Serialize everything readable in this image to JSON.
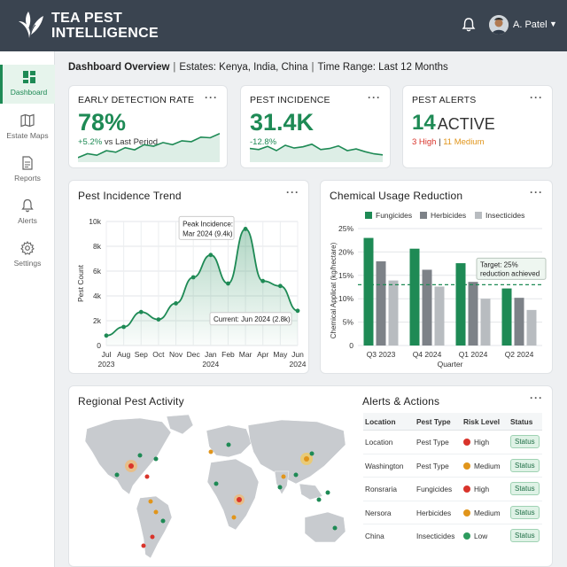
{
  "app": {
    "brand_line1": "TEA PEST",
    "brand_line2": "INTELLIGENCE",
    "user_name": "A. Patel",
    "accent": "#1e8a55",
    "topbar_color": "#3a4450"
  },
  "sidebar": {
    "items": [
      {
        "label": "Dashboard",
        "icon": "dashboard-icon",
        "active": true
      },
      {
        "label": "Estate Maps",
        "icon": "map-icon",
        "active": false
      },
      {
        "label": "Reports",
        "icon": "document-icon",
        "active": false
      },
      {
        "label": "Alerts",
        "icon": "bell-icon",
        "active": false
      },
      {
        "label": "Settings",
        "icon": "gear-icon",
        "active": false
      }
    ]
  },
  "header": {
    "title": "Dashboard Overview",
    "estates_label": "Estates:",
    "estates": "Kenya, India, China",
    "range_label": "Time Range:",
    "range": "Last 12 Months"
  },
  "kpis": {
    "detection": {
      "title": "EARLY DETECTION RATE",
      "value": "78%",
      "change": "+5.2%",
      "change_suffix": "vs Last Period",
      "sparkline": [
        0.12,
        0.25,
        0.2,
        0.35,
        0.3,
        0.45,
        0.38,
        0.55,
        0.5,
        0.62,
        0.55,
        0.68,
        0.65,
        0.8,
        0.78,
        0.92
      ]
    },
    "incidence": {
      "title": "PEST INCIDENCE",
      "value": "31.4K",
      "change": "-12.8%",
      "sparkline": [
        0.6,
        0.55,
        0.7,
        0.5,
        0.75,
        0.62,
        0.68,
        0.8,
        0.55,
        0.6,
        0.72,
        0.5,
        0.58,
        0.45,
        0.35,
        0.3
      ]
    },
    "alerts": {
      "title": "PEST ALERTS",
      "value": "14",
      "value_suffix": "ACTIVE",
      "high": "3 High",
      "medium": "11 Medium"
    }
  },
  "trend": {
    "title": "Pest Incidence Trend",
    "peak_label": "Peak Incidence:",
    "peak_value": "Mar 2024 (9.4k)",
    "current_label": "Current: Jun 2024 (2.8k)"
  },
  "usage": {
    "title": "Chemical Usage Reduction",
    "target_label": "Target: 25%",
    "target_label2": "reduction achieved"
  },
  "regional": {
    "title": "Regional Pest Activity"
  },
  "alerts_table": {
    "title": "Alerts & Actions",
    "columns": [
      "Location",
      "Pest Type",
      "Risk Level",
      "Status"
    ],
    "rows": [
      {
        "location": "Location",
        "pest": "Pest Type",
        "risk": "High",
        "risk_color": "#d9342b",
        "status": "Status"
      },
      {
        "location": "Washington",
        "pest": "Pest Type",
        "risk": "Medium",
        "risk_color": "#e1951b",
        "status": "Status"
      },
      {
        "location": "Ronsraria",
        "pest": "Fungicides",
        "risk": "High",
        "risk_color": "#d9342b",
        "status": "Status"
      },
      {
        "location": "Nersora",
        "pest": "Herbicides",
        "risk": "Medium",
        "risk_color": "#e1951b",
        "status": "Status"
      },
      {
        "location": "China",
        "pest": "Insecticides",
        "risk": "Low",
        "risk_color": "#2e9b5e",
        "status": "Status"
      }
    ]
  },
  "chart_data": [
    {
      "type": "line",
      "title": "Pest Incidence Trend",
      "ylabel": "Pest Count",
      "x": [
        "Jul 2023",
        "Aug",
        "Sep",
        "Oct",
        "Nov",
        "Dec",
        "Jan 2024",
        "Feb",
        "Mar",
        "Apr",
        "May",
        "Jun 2024"
      ],
      "x_tick_labels": [
        [
          "Jul",
          "2023"
        ],
        [
          "Aug"
        ],
        [
          "Sep"
        ],
        [
          "Oct"
        ],
        [
          "Nov"
        ],
        [
          "Dec"
        ],
        [
          "Jan",
          "2024"
        ],
        [
          "Feb"
        ],
        [
          "Mar"
        ],
        [
          "Apr"
        ],
        [
          "May"
        ],
        [
          "Jun",
          "2024"
        ]
      ],
      "values": [
        0.8,
        1.5,
        2.7,
        2.1,
        3.4,
        5.5,
        7.3,
        5.0,
        9.4,
        5.2,
        4.8,
        2.8
      ],
      "ylim": [
        0,
        10
      ],
      "y_tick_labels": [
        "0",
        "2k",
        "4k",
        "6k",
        "8k",
        "10k"
      ],
      "grid": true,
      "color": "#1e8a55"
    },
    {
      "type": "bar",
      "title": "Chemical Usage Reduction",
      "xlabel": "Quarter",
      "ylabel": "Chemical Applicat (kg/hectare)",
      "categories": [
        "Q3 2023",
        "Q4 2024",
        "Q1 2024",
        "Q2 2024"
      ],
      "series": [
        {
          "name": "Fungicides",
          "color": "#1e8a55",
          "values": [
            23,
            20.7,
            17.6,
            12.2
          ]
        },
        {
          "name": "Herbicides",
          "color": "#7d8288",
          "values": [
            18,
            16.2,
            13.6,
            10.2
          ]
        },
        {
          "name": "Insecticides",
          "color": "#b8bcc0",
          "values": [
            13.9,
            12.6,
            10,
            7.6
          ]
        }
      ],
      "ylim": [
        0,
        25
      ],
      "y_tick_labels": [
        "0",
        "5%",
        "10%",
        "15%",
        "20%",
        "25%"
      ],
      "target_line": 13,
      "legend": "top",
      "grid": true
    }
  ]
}
